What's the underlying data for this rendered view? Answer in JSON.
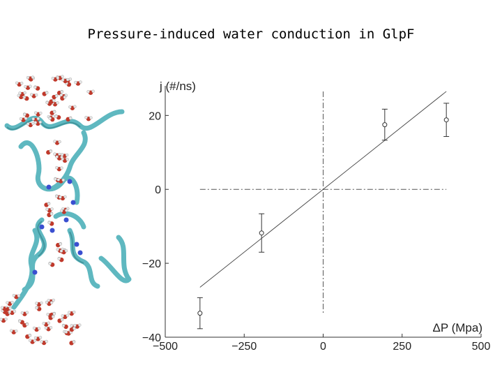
{
  "slide": {
    "title": "Pressure-induced water conduction in GlpF"
  },
  "molecule_image": {
    "description_icon": "molecular-dynamics-render-icon",
    "colors": {
      "ribbon": "#5fb8c0",
      "oxygen": "#c0392b",
      "hydrogen": "#e8e8e8",
      "nitrogen": "#3a4fd0"
    }
  },
  "chart_data": {
    "type": "scatter",
    "title": "",
    "xlabel": "ΔP (Mpa)",
    "ylabel": "j (#/ns)",
    "xlim": [
      -500,
      500
    ],
    "ylim": [
      -40,
      28
    ],
    "xticks": [
      -500,
      -250,
      0,
      250,
      500
    ],
    "xtick_labels": [
      "−500",
      "−250",
      "0",
      "250",
      "500"
    ],
    "yticks": [
      -40,
      -20,
      0,
      20
    ],
    "ytick_labels": [
      "−40",
      "−20",
      "0",
      "20"
    ],
    "grid": false,
    "series": [
      {
        "marker": "circle",
        "points": [
          {
            "x": -390,
            "y": -33.5,
            "err": 4.2
          },
          {
            "x": -195,
            "y": -11.8,
            "err": 5.2
          },
          {
            "x": 195,
            "y": 17.5,
            "err": 4.2
          },
          {
            "x": 390,
            "y": 18.8,
            "err": 4.5
          }
        ]
      }
    ],
    "fit_line": {
      "x": [
        -390,
        390
      ],
      "y": [
        -26.5,
        26.5
      ]
    },
    "reference_lines": {
      "x0": 0,
      "y0": 0,
      "style": "dash-dot"
    }
  }
}
